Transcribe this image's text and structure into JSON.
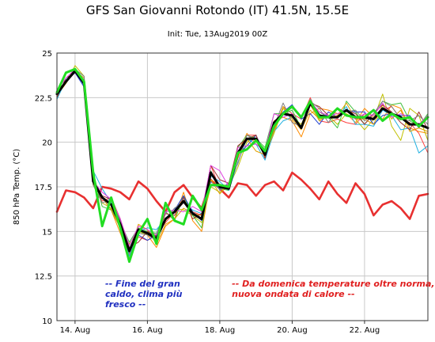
{
  "chart_data": {
    "type": "line",
    "title": "GFS San Giovanni Rotondo (IT) 41.5N, 15.5E",
    "subtitle": "Init: Tue, 13Aug2019 00Z",
    "ylabel": "850 hPa Temp. (°C)",
    "ylim": [
      10,
      25
    ],
    "xlim": [
      0,
      123
    ],
    "yticks": [
      10,
      12.5,
      15,
      17.5,
      20,
      22.5,
      25
    ],
    "ytick_labels": [
      "10",
      "12.5",
      "15",
      "17.5",
      "20",
      "22.5",
      "25"
    ],
    "xticks": [
      {
        "pos": 6,
        "label": "14. Aug"
      },
      {
        "pos": 30,
        "label": "16. Aug"
      },
      {
        "pos": 54,
        "label": "18. Aug"
      },
      {
        "pos": 78,
        "label": "20. Aug"
      },
      {
        "pos": 102,
        "label": "22. Aug"
      }
    ],
    "grid": true,
    "x": [
      0,
      3,
      6,
      9,
      12,
      15,
      18,
      21,
      24,
      27,
      30,
      33,
      36,
      39,
      42,
      45,
      48,
      51,
      54,
      57,
      60,
      63,
      66,
      69,
      72,
      75,
      78,
      81,
      84,
      87,
      90,
      93,
      96,
      99,
      102,
      105,
      108,
      111,
      114,
      117,
      120,
      123
    ],
    "series": [
      {
        "name": "",
        "role": "climate",
        "color": "#e83030",
        "width": 2.6,
        "values": [
          16.1,
          17.3,
          17.2,
          16.9,
          16.3,
          17.5,
          17.4,
          17.2,
          16.8,
          17.8,
          17.4,
          16.7,
          16.1,
          17.2,
          17.6,
          16.9,
          16.3,
          17.9,
          17.4,
          16.9,
          17.7,
          17.6,
          17.0,
          17.6,
          17.8,
          17.3,
          18.3,
          17.9,
          17.4,
          16.8,
          17.8,
          17.1,
          16.6,
          17.7,
          17.1,
          15.9,
          16.5,
          16.7,
          16.3,
          15.7,
          17.0,
          17.1
        ]
      },
      {
        "name": "",
        "role": "member",
        "color": "#ff8c00",
        "width": 1,
        "values": [
          22.6,
          23.3,
          24.1,
          23.4,
          17.6,
          16.9,
          16.2,
          14.9,
          13.6,
          15.2,
          14.8,
          14.1,
          15.3,
          15.7,
          17.2,
          15.6,
          15.0,
          17.9,
          17.6,
          17.3,
          19.4,
          20.5,
          19.9,
          19.6,
          21.2,
          21.4,
          21.2,
          20.3,
          21.6,
          21.9,
          21.8,
          21.6,
          21.6,
          21.1,
          21.9,
          21.4,
          21.3,
          22.1,
          21.9,
          20.8,
          20.6,
          20.5
        ]
      },
      {
        "name": "",
        "role": "member",
        "color": "#ff4040",
        "width": 1,
        "values": [
          22.9,
          23.4,
          23.9,
          23.4,
          17.9,
          16.7,
          16.9,
          15.7,
          13.7,
          14.7,
          14.5,
          14.8,
          15.5,
          16.1,
          16.6,
          16.1,
          15.9,
          18.7,
          17.4,
          17.5,
          19.1,
          20.4,
          20.4,
          19.1,
          20.7,
          22.0,
          21.6,
          21.3,
          22.5,
          21.2,
          21.1,
          21.3,
          21.1,
          21.0,
          21.6,
          21.3,
          21.8,
          22.0,
          21.3,
          21.1,
          20.5,
          19.4
        ]
      },
      {
        "name": "",
        "role": "member",
        "color": "#c0c000",
        "width": 1,
        "values": [
          22.8,
          23.3,
          24.3,
          23.7,
          17.6,
          16.6,
          16.3,
          15.2,
          14.3,
          15.0,
          14.8,
          14.8,
          15.6,
          16.3,
          16.2,
          15.9,
          15.5,
          17.5,
          17.2,
          17.5,
          18.6,
          20.0,
          20.4,
          19.2,
          20.5,
          21.9,
          21.4,
          21.0,
          22.1,
          21.2,
          21.5,
          21.0,
          21.6,
          21.3,
          20.7,
          21.3,
          22.7,
          20.9,
          20.1,
          21.9,
          21.5,
          20.1
        ]
      },
      {
        "name": "",
        "role": "member",
        "color": "#40c040",
        "width": 1,
        "values": [
          22.5,
          23.4,
          24.0,
          23.2,
          18.3,
          16.4,
          16.2,
          15.5,
          14.4,
          15.2,
          15.0,
          14.9,
          16.1,
          15.6,
          17.0,
          15.9,
          15.2,
          18.4,
          17.4,
          17.3,
          19.7,
          20.4,
          20.2,
          19.7,
          21.6,
          21.6,
          21.8,
          20.8,
          22.2,
          21.7,
          21.4,
          20.8,
          22.3,
          21.7,
          21.0,
          21.6,
          22.3,
          22.1,
          22.2,
          21.2,
          20.9,
          21.6
        ]
      },
      {
        "name": "",
        "role": "member",
        "color": "#20b0e0",
        "width": 1,
        "values": [
          22.4,
          23.5,
          24.0,
          23.6,
          18.4,
          17.4,
          16.6,
          15.6,
          13.6,
          15.0,
          15.2,
          15.1,
          15.7,
          16.3,
          16.6,
          16.2,
          16.0,
          18.1,
          17.8,
          17.3,
          18.9,
          20.2,
          19.9,
          19.0,
          20.6,
          21.2,
          21.4,
          20.9,
          22.4,
          21.5,
          21.5,
          21.4,
          22.0,
          21.0,
          21.0,
          20.9,
          21.8,
          21.5,
          20.7,
          20.8,
          19.4,
          19.8
        ]
      },
      {
        "name": "",
        "role": "member",
        "color": "#2040d0",
        "width": 1,
        "values": [
          22.8,
          23.4,
          23.9,
          23.1,
          17.9,
          16.9,
          16.2,
          15.2,
          13.9,
          14.8,
          14.5,
          14.8,
          16.1,
          16.2,
          17.0,
          16.1,
          15.6,
          17.8,
          17.4,
          17.7,
          19.3,
          19.8,
          20.4,
          19.3,
          21.1,
          21.7,
          22.1,
          21.3,
          21.6,
          21.0,
          21.7,
          21.4,
          21.8,
          21.7,
          21.7,
          21.0,
          21.5,
          21.6,
          21.5,
          21.5,
          20.8,
          21.5
        ]
      },
      {
        "name": "",
        "role": "member",
        "color": "#e0a000",
        "width": 1,
        "values": [
          22.7,
          23.4,
          24.0,
          23.6,
          17.7,
          16.9,
          16.2,
          15.2,
          13.8,
          15.4,
          15.1,
          14.3,
          15.4,
          15.7,
          16.3,
          16.0,
          15.9,
          17.9,
          17.1,
          17.7,
          19.2,
          20.2,
          19.5,
          19.3,
          20.6,
          22.0,
          21.3,
          20.7,
          21.8,
          21.3,
          21.4,
          21.5,
          22.2,
          21.3,
          21.3,
          21.0,
          22.1,
          21.3,
          21.8,
          20.6,
          20.8,
          20.6
        ]
      },
      {
        "name": "",
        "role": "member",
        "color": "#a03030",
        "width": 1,
        "values": [
          22.5,
          23.6,
          23.9,
          23.5,
          17.8,
          17.0,
          16.8,
          15.7,
          14.1,
          14.4,
          15.0,
          14.7,
          16.0,
          15.9,
          16.9,
          15.7,
          16.0,
          18.7,
          17.9,
          17.7,
          19.8,
          20.2,
          20.4,
          19.1,
          21.1,
          21.6,
          21.5,
          20.8,
          22.2,
          22.0,
          21.5,
          21.4,
          21.8,
          21.6,
          21.0,
          21.6,
          22.1,
          21.7,
          21.1,
          20.7,
          21.7,
          20.7
        ]
      },
      {
        "name": "",
        "role": "member",
        "color": "#808080",
        "width": 1,
        "values": [
          22.8,
          23.4,
          24.1,
          23.7,
          17.6,
          16.6,
          16.8,
          15.6,
          13.8,
          14.9,
          14.8,
          14.5,
          15.7,
          16.3,
          16.7,
          16.1,
          15.7,
          18.3,
          17.3,
          17.7,
          18.8,
          20.4,
          20.1,
          19.6,
          20.9,
          22.2,
          21.1,
          20.9,
          22.3,
          21.9,
          21.1,
          21.9,
          21.7,
          21.8,
          21.2,
          21.6,
          22.3,
          22.0,
          21.3,
          21.2,
          21.5,
          21.0
        ]
      },
      {
        "name": "",
        "role": "member",
        "color": "#e040e0",
        "width": 1,
        "values": [
          22.9,
          23.6,
          24.1,
          23.3,
          17.8,
          17.2,
          16.8,
          15.7,
          14.2,
          15.3,
          15.1,
          14.8,
          16.1,
          16.2,
          16.1,
          16.4,
          16.1,
          18.7,
          18.4,
          17.5,
          19.7,
          19.8,
          19.9,
          19.5,
          21.6,
          21.4,
          21.6,
          20.8,
          22.3,
          21.7,
          21.5,
          21.6,
          21.8,
          21.3,
          21.6,
          21.5,
          22.2,
          21.4,
          21.6,
          21.4,
          21.0,
          21.5
        ]
      },
      {
        "name": "",
        "role": "mean",
        "color": "#000000",
        "width": 3,
        "values": [
          22.7,
          23.4,
          24.0,
          23.3,
          17.8,
          16.9,
          16.5,
          15.4,
          13.9,
          15.1,
          14.9,
          14.6,
          15.7,
          16.1,
          16.7,
          16.0,
          15.7,
          18.3,
          17.5,
          17.4,
          19.4,
          20.2,
          20.2,
          19.3,
          21.1,
          21.6,
          21.5,
          20.8,
          22.2,
          21.5,
          21.4,
          21.4,
          21.8,
          21.4,
          21.4,
          21.3,
          21.9,
          21.6,
          21.4,
          21.0,
          21.0,
          20.8
        ]
      },
      {
        "name": "",
        "role": "control",
        "color": "#22dd22",
        "width": 3,
        "values": [
          22.8,
          23.9,
          24.1,
          23.4,
          18.3,
          15.3,
          16.9,
          15.2,
          13.3,
          14.9,
          15.7,
          14.3,
          16.6,
          15.6,
          15.4,
          17.0,
          16.2,
          17.6,
          17.6,
          17.5,
          19.4,
          19.6,
          20.1,
          19.5,
          20.9,
          21.6,
          22.0,
          21.4,
          22.3,
          21.4,
          21.4,
          21.9,
          21.5,
          21.4,
          21.4,
          21.8,
          21.2,
          21.6,
          21.3,
          21.4,
          20.9,
          21.4
        ]
      }
    ],
    "annotations": [
      {
        "lines": [
          "-- Fine del gran",
          "caldo, clima più",
          "fresco --"
        ],
        "color": "#2030c0",
        "x": 16,
        "y": 11.9
      },
      {
        "lines": [
          "-- Da domenica temperature oltre norma,",
          "nuova ondata di calore --"
        ],
        "color": "#e02020",
        "x": 58,
        "y": 11.9
      }
    ]
  }
}
